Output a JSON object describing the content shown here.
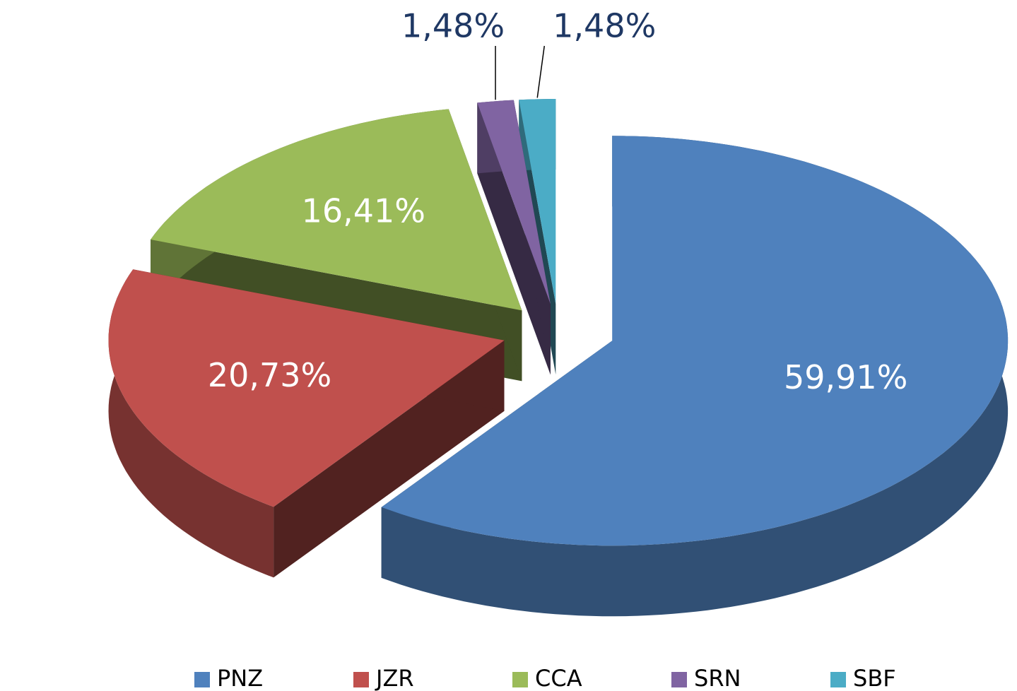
{
  "chart_data": {
    "type": "pie",
    "categories": [
      "PNZ",
      "JZR",
      "CCA",
      "SRN",
      "SBF"
    ],
    "values": [
      59.91,
      20.73,
      16.41,
      1.48,
      1.48
    ],
    "value_labels": [
      "59,91%",
      "20,73%",
      "16,41%",
      "1,48%",
      "1,48%"
    ],
    "colors": [
      "#4f81bd",
      "#c0504d",
      "#9bbb59",
      "#8064a2",
      "#4bacc6"
    ],
    "legend": "bottom"
  }
}
